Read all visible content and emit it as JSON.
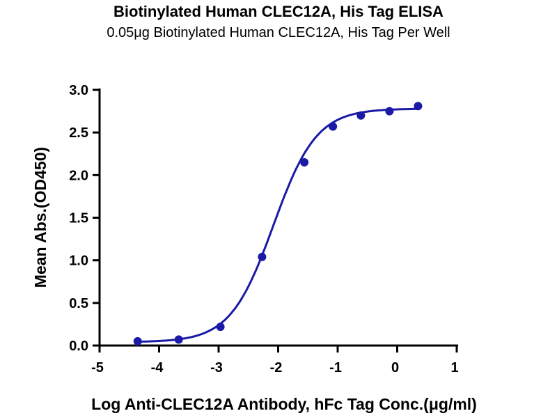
{
  "chart_data": {
    "type": "scatter",
    "title": "Biotinylated Human CLEC12A, His Tag ELISA",
    "subtitle": "0.05μg Biotinylated Human CLEC12A, His Tag Per Well",
    "xlabel": "Log Anti-CLEC12A Antibody, hFc Tag Conc.(μg/ml)",
    "ylabel": "Mean Abs.(OD450)",
    "xlim": [
      -5,
      1
    ],
    "ylim": [
      0,
      3.0
    ],
    "x_ticks": [
      "-5",
      "-4",
      "-3",
      "-2",
      "-1",
      "0",
      "1"
    ],
    "y_ticks": [
      "0.0",
      "0.5",
      "1.0",
      "1.5",
      "2.0",
      "2.5",
      "3.0"
    ],
    "grid": false,
    "color": "#1a1aa6",
    "fit": "sigmoidal curve",
    "x": [
      -4.36,
      -3.67,
      -2.97,
      -2.27,
      -1.56,
      -1.08,
      -0.61,
      -0.13,
      0.35
    ],
    "y": [
      0.05,
      0.07,
      0.22,
      1.04,
      2.15,
      2.57,
      2.7,
      2.75,
      2.81
    ]
  }
}
